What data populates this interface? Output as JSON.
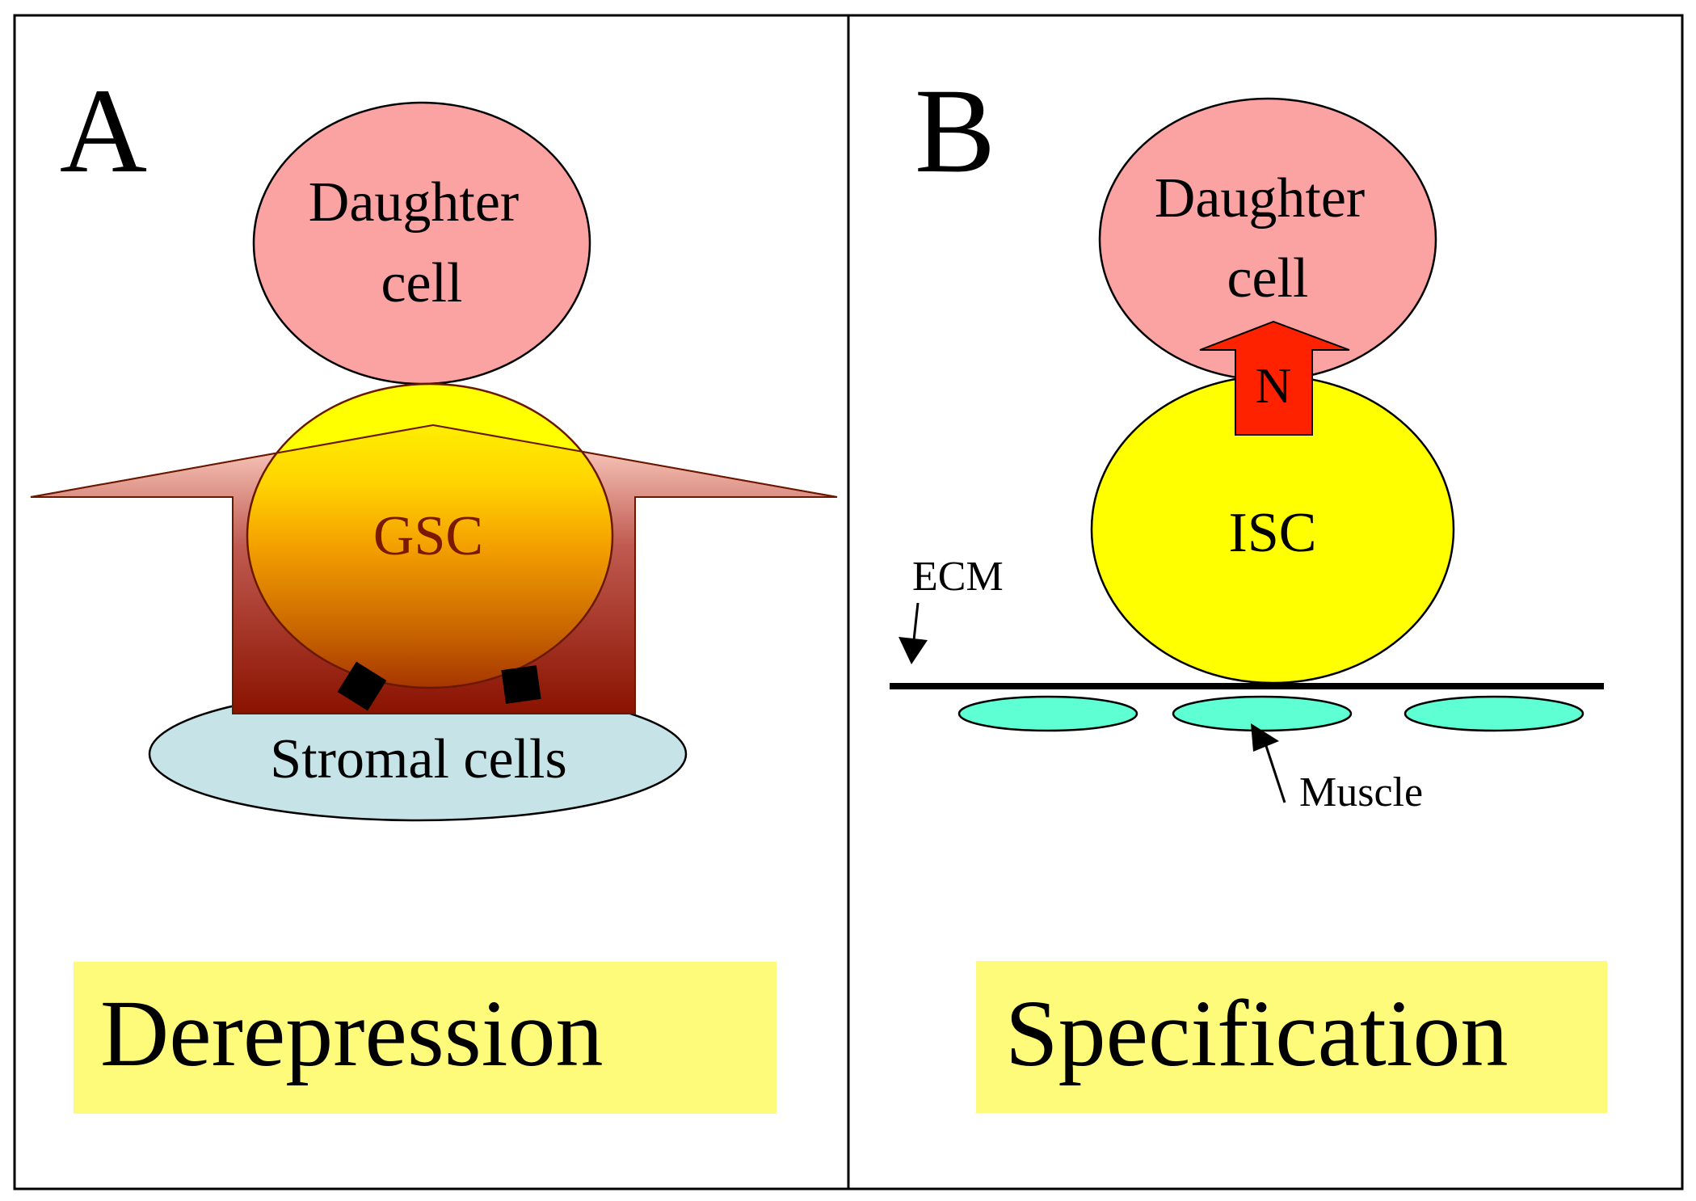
{
  "panel_a": {
    "letter": "A",
    "daughter_line1": "Daughter",
    "daughter_line2": "cell",
    "stem_cell": "GSC",
    "niche": "Stromal cells",
    "mode": "Derepression"
  },
  "panel_b": {
    "letter": "B",
    "daughter_line1": "Daughter",
    "daughter_line2": "cell",
    "signal": "N",
    "stem_cell": "ISC",
    "ecm": "ECM",
    "muscle": "Muscle",
    "mode": "Specification"
  },
  "colors": {
    "daughter": "#fba3a3",
    "stem_yellow": "#ffff00",
    "stroma": "#c6e4e8",
    "muscle": "#5effd2",
    "notch_arrow": "#ff2200",
    "label_box": "#fffb7a",
    "gsc_text": "#7a1800"
  }
}
